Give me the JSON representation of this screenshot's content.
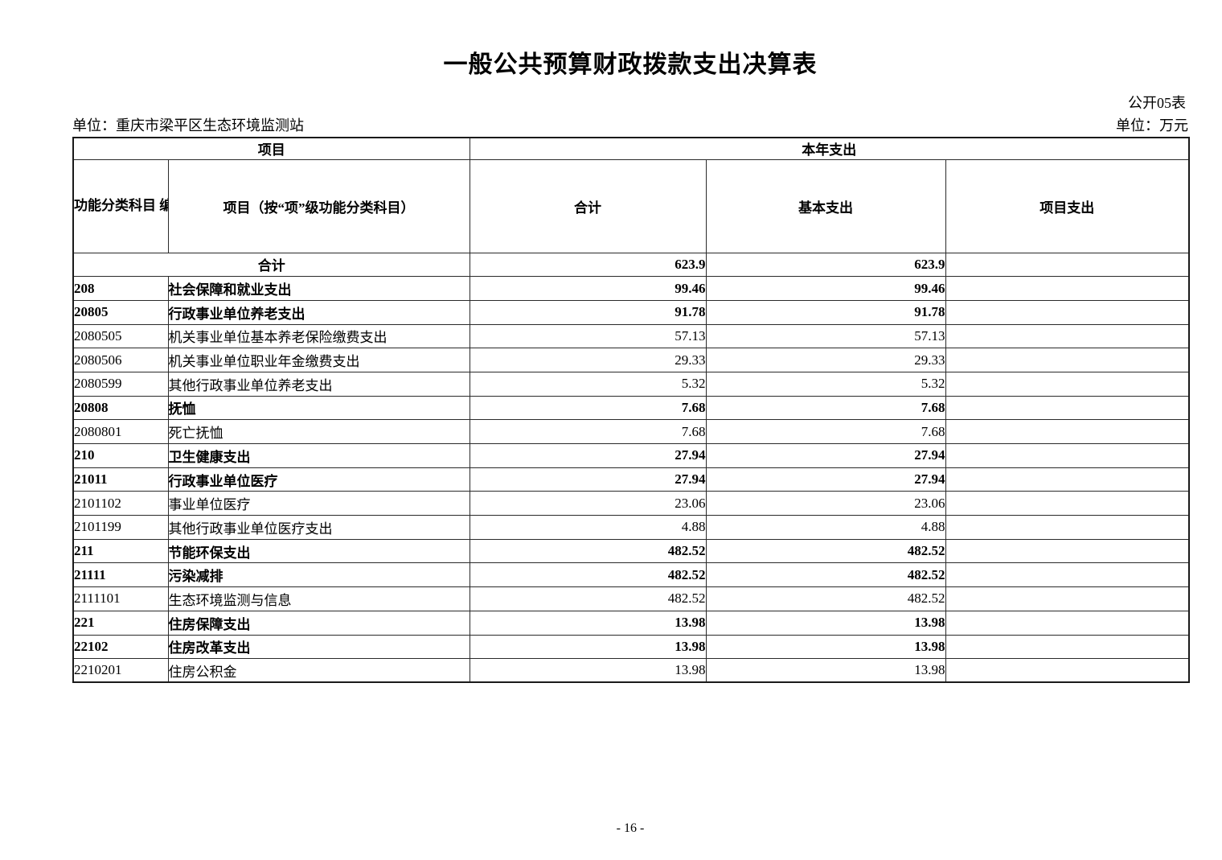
{
  "page": {
    "title": "一般公共预算财政拨款支出决算表",
    "doc_label": "公开05表",
    "unit_org": "单位：重庆市梁平区生态环境监测站",
    "unit_currency": "单位：万元",
    "page_number": "- 16 -"
  },
  "table": {
    "group_project": "项目",
    "group_current_year": "本年支出",
    "col_code": "功能分类科目\n编码",
    "col_item": "项目（按“项”级功能分类科目）",
    "col_total": "合计",
    "col_basic": "基本支出",
    "col_project": "项目支出",
    "rows": [
      {
        "code": "",
        "name": "合计",
        "total": "623.9",
        "basic": "623.9",
        "project": "",
        "bold": true,
        "merged": true
      },
      {
        "code": "208",
        "name": "社会保障和就业支出",
        "total": "99.46",
        "basic": "99.46",
        "project": "",
        "bold": true,
        "merged": false
      },
      {
        "code": "20805",
        "name": "行政事业单位养老支出",
        "total": "91.78",
        "basic": "91.78",
        "project": "",
        "bold": true,
        "merged": false
      },
      {
        "code": "2080505",
        "name": "机关事业单位基本养老保险缴费支出",
        "total": "57.13",
        "basic": "57.13",
        "project": "",
        "bold": false,
        "merged": false
      },
      {
        "code": "2080506",
        "name": "机关事业单位职业年金缴费支出",
        "total": "29.33",
        "basic": "29.33",
        "project": "",
        "bold": false,
        "merged": false
      },
      {
        "code": "2080599",
        "name": "其他行政事业单位养老支出",
        "total": "5.32",
        "basic": "5.32",
        "project": "",
        "bold": false,
        "merged": false
      },
      {
        "code": "20808",
        "name": "抚恤",
        "total": "7.68",
        "basic": "7.68",
        "project": "",
        "bold": true,
        "merged": false
      },
      {
        "code": "2080801",
        "name": "死亡抚恤",
        "total": "7.68",
        "basic": "7.68",
        "project": "",
        "bold": false,
        "merged": false
      },
      {
        "code": "210",
        "name": "卫生健康支出",
        "total": "27.94",
        "basic": "27.94",
        "project": "",
        "bold": true,
        "merged": false
      },
      {
        "code": "21011",
        "name": "行政事业单位医疗",
        "total": "27.94",
        "basic": "27.94",
        "project": "",
        "bold": true,
        "merged": false
      },
      {
        "code": "2101102",
        "name": "事业单位医疗",
        "total": "23.06",
        "basic": "23.06",
        "project": "",
        "bold": false,
        "merged": false
      },
      {
        "code": "2101199",
        "name": "其他行政事业单位医疗支出",
        "total": "4.88",
        "basic": "4.88",
        "project": "",
        "bold": false,
        "merged": false
      },
      {
        "code": "211",
        "name": "节能环保支出",
        "total": "482.52",
        "basic": "482.52",
        "project": "",
        "bold": true,
        "merged": false
      },
      {
        "code": "21111",
        "name": "污染减排",
        "total": "482.52",
        "basic": "482.52",
        "project": "",
        "bold": true,
        "merged": false
      },
      {
        "code": "2111101",
        "name": "生态环境监测与信息",
        "total": "482.52",
        "basic": "482.52",
        "project": "",
        "bold": false,
        "merged": false
      },
      {
        "code": "221",
        "name": "住房保障支出",
        "total": "13.98",
        "basic": "13.98",
        "project": "",
        "bold": true,
        "merged": false
      },
      {
        "code": "22102",
        "name": "住房改革支出",
        "total": "13.98",
        "basic": "13.98",
        "project": "",
        "bold": true,
        "merged": false
      },
      {
        "code": "2210201",
        "name": "住房公积金",
        "total": "13.98",
        "basic": "13.98",
        "project": "",
        "bold": false,
        "merged": false
      }
    ]
  }
}
